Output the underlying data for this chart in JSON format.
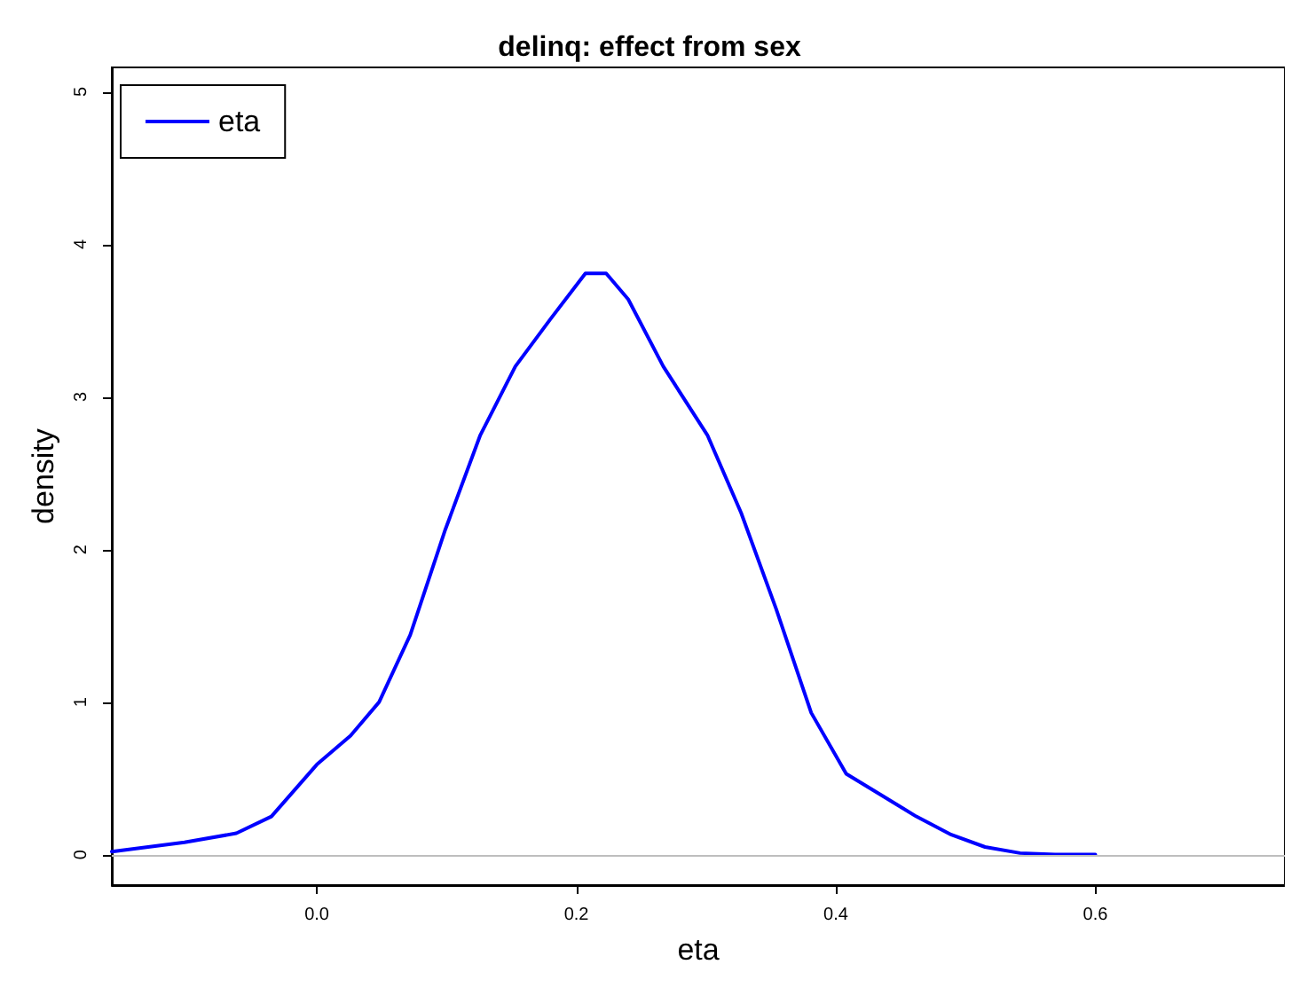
{
  "chart_data": {
    "type": "line",
    "title": "delinq: effect from sex",
    "xlabel": "eta",
    "ylabel": "density",
    "series": [
      {
        "name": "eta",
        "color": "#0000ff",
        "x": [
          -0.158,
          -0.102,
          -0.062,
          -0.035,
          0.0,
          0.026,
          0.048,
          0.072,
          0.099,
          0.126,
          0.153,
          0.18,
          0.207,
          0.223,
          0.24,
          0.267,
          0.301,
          0.327,
          0.354,
          0.381,
          0.408,
          0.435,
          0.462,
          0.489,
          0.515,
          0.542,
          0.569,
          0.6
        ],
        "values": [
          0.02,
          0.08,
          0.14,
          0.25,
          0.59,
          0.78,
          1.0,
          1.44,
          2.13,
          2.75,
          3.2,
          3.51,
          3.81,
          3.81,
          3.64,
          3.2,
          2.75,
          2.24,
          1.61,
          0.93,
          0.53,
          0.39,
          0.25,
          0.13,
          0.05,
          0.01,
          0,
          0
        ]
      }
    ],
    "xlim": [
      -0.158,
      0.746
    ],
    "xticks": [
      {
        "value": 0,
        "label": "0.0"
      },
      0.2,
      0.4,
      0.6
    ],
    "ylim": [
      -0.2,
      5.16
    ],
    "yticks": [
      0,
      1,
      2,
      3,
      4,
      5
    ],
    "ref_lines": [
      {
        "axis": "y",
        "value": 0,
        "color": "#bebebe"
      }
    ],
    "legend": "top left",
    "grid": false,
    "marker": "none",
    "line_style": "solid"
  }
}
